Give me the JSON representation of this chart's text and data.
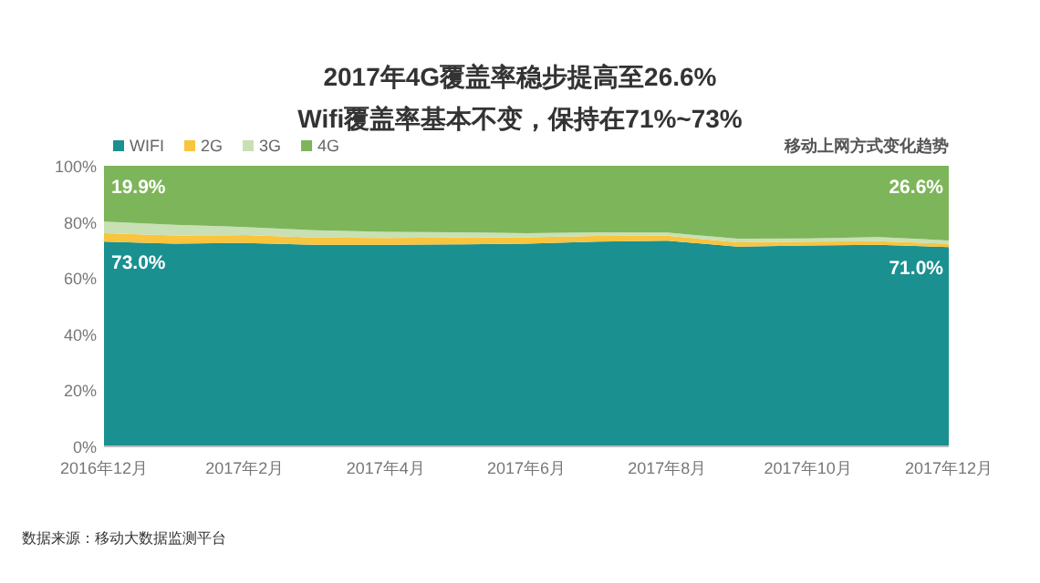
{
  "chart_data": {
    "type": "area",
    "stacked": true,
    "title": "2017年4G覆盖率稳步提高至26.6%",
    "subtitle": "Wifi覆盖率基本不变，保持在71%~73%",
    "categories": [
      "2016年12月",
      null,
      "2017年2月",
      null,
      "2017年4月",
      null,
      "2017年6月",
      null,
      "2017年8月",
      null,
      "2017年10月",
      null,
      "2017年12月"
    ],
    "series": [
      {
        "name": "WIFI",
        "color": "#1a9090",
        "values": [
          73.0,
          72.2,
          72.5,
          71.8,
          71.8,
          72,
          72.2,
          73,
          73.3,
          71.2,
          71.6,
          71.8,
          71.0
        ],
        "value_labels": [
          "73.0%",
          null,
          null,
          null,
          null,
          null,
          null,
          null,
          null,
          null,
          null,
          null,
          "71.0%"
        ]
      },
      {
        "name": "2G",
        "color": "#f9c43e",
        "values": [
          3,
          3,
          2.8,
          2.6,
          2.5,
          2.4,
          2.3,
          2,
          1.8,
          1.5,
          1.4,
          1.3,
          1.2
        ]
      },
      {
        "name": "3G",
        "color": "#c8e0b4",
        "values": [
          4.1,
          3.8,
          2.9,
          2.6,
          2.2,
          1.9,
          1.5,
          1.3,
          1.1,
          1.3,
          1.1,
          1.5,
          1.2
        ]
      },
      {
        "name": "4G",
        "color": "#7db55a",
        "values": [
          19.9,
          21,
          21.8,
          23,
          23.5,
          23.7,
          24,
          23.7,
          23.8,
          26,
          25.9,
          25.4,
          26.6
        ],
        "value_labels": [
          "19.9%",
          null,
          null,
          null,
          null,
          null,
          null,
          null,
          null,
          null,
          null,
          null,
          "26.6%"
        ]
      }
    ],
    "ylim": [
      0,
      100
    ],
    "yticks": [
      {
        "value": 0,
        "label": "0%"
      },
      {
        "value": 20,
        "label": "20%"
      },
      {
        "value": 40,
        "label": "40%"
      },
      {
        "value": 60,
        "label": "60%"
      },
      {
        "value": 80,
        "label": "80%"
      },
      {
        "value": 100,
        "label": "100%"
      }
    ],
    "legend": "top left",
    "annotations": [
      "移动上网方式变化趋势",
      "数据来源：移动大数据监测平台"
    ]
  }
}
